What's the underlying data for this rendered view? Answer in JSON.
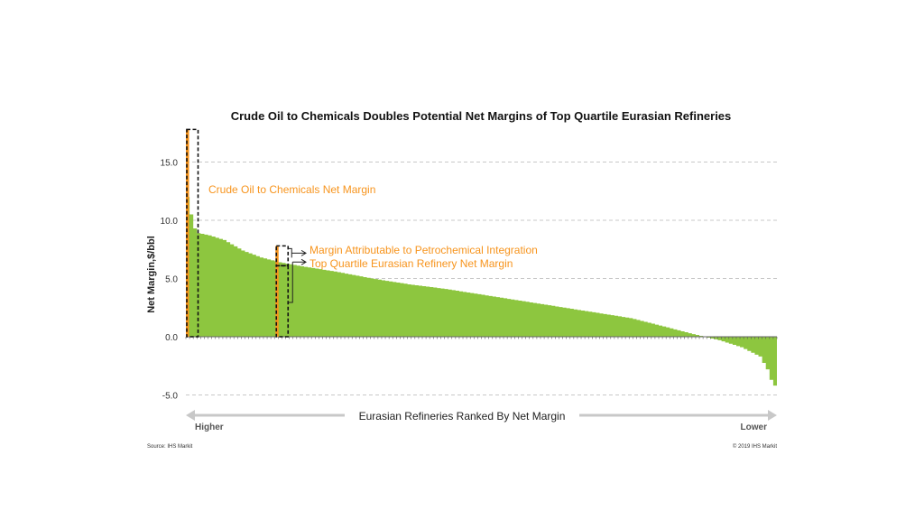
{
  "chart_data": {
    "type": "area",
    "title": "Crude Oil to Chemicals Doubles Potential Net Margins of Top Quartile Eurasian Refineries",
    "ylabel": "Net Margin,$/bbl",
    "xlabel": "Eurasian Refineries Ranked By Net Margin",
    "x_left_label": "Higher",
    "x_right_label": "Lower",
    "ylim": [
      -5.0,
      17.8
    ],
    "yticks": [
      "15.0",
      "10.0",
      "5.0",
      "0.0",
      "-5.0"
    ],
    "ytick_values": [
      15,
      10,
      5,
      0,
      -5
    ],
    "grid": true,
    "n_refineries": 160,
    "curve_anchors": [
      [
        0,
        12.0
      ],
      [
        1,
        10.5
      ],
      [
        2,
        9.3
      ],
      [
        3,
        8.9
      ],
      [
        6,
        8.7
      ],
      [
        10,
        8.3
      ],
      [
        15,
        7.4
      ],
      [
        20,
        6.8
      ],
      [
        25,
        6.4
      ],
      [
        30,
        6.1
      ],
      [
        40,
        5.6
      ],
      [
        50,
        5.0
      ],
      [
        60,
        4.5
      ],
      [
        70,
        4.1
      ],
      [
        80,
        3.6
      ],
      [
        90,
        3.1
      ],
      [
        100,
        2.6
      ],
      [
        110,
        2.1
      ],
      [
        120,
        1.6
      ],
      [
        130,
        0.8
      ],
      [
        136,
        0.3
      ],
      [
        140,
        0.0
      ],
      [
        144,
        -0.3
      ],
      [
        150,
        -0.9
      ],
      [
        155,
        -1.7
      ],
      [
        157,
        -2.8
      ],
      [
        158,
        -3.7
      ],
      [
        159,
        -4.2
      ]
    ],
    "highlights": [
      {
        "name": "Crude Oil to Chemicals Net Margin",
        "rank": 0,
        "value": 17.8
      },
      {
        "name": "Top Quartile Eurasian Refinery",
        "rank": 24,
        "net_margin": 6.1,
        "with_petchem": 7.8
      }
    ],
    "annotations": [
      "Crude Oil to Chemicals Net Margin",
      "Margin Attributable to Petrochemical Integration",
      "Top Quartile Eurasian Refinery Net Margin"
    ],
    "series_colors": {
      "area": "#8dc63f",
      "highlight": "#f7941d"
    }
  },
  "footer": {
    "source": "Source:  IHS Markit",
    "copyright": "© 2019  IHS Markit"
  }
}
